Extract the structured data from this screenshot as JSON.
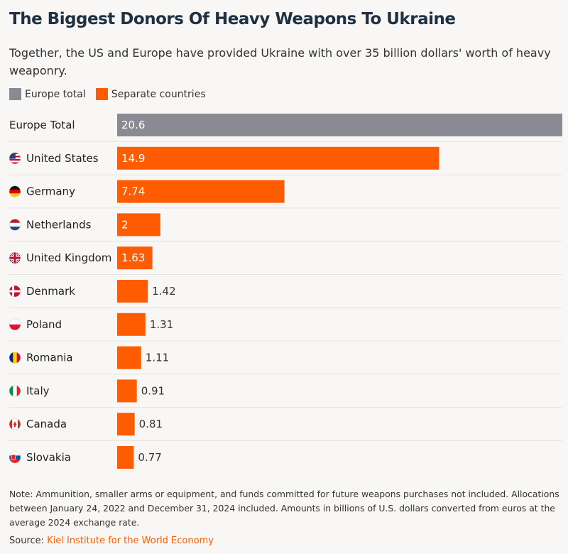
{
  "title": "The Biggest Donors Of Heavy Weapons To Ukraine",
  "subtitle": "Together, the US and Europe have provided Ukraine with over 35 billion dollars' worth of heavy weaponry.",
  "legend": {
    "europe_label": "Europe total",
    "countries_label": "Separate countries"
  },
  "colors": {
    "europe": "#8a8a94",
    "countries": "#ff5b00",
    "gridline": "#e6e4e0"
  },
  "chart_data": {
    "type": "bar",
    "orientation": "horizontal",
    "categories": [
      "Europe Total",
      "United States",
      "Germany",
      "Netherlands",
      "United Kingdom",
      "Denmark",
      "Poland",
      "Romania",
      "Italy",
      "Canada",
      "Slovakia"
    ],
    "values": [
      20.6,
      14.9,
      7.74,
      2,
      1.63,
      1.42,
      1.31,
      1.11,
      0.91,
      0.81,
      0.77
    ],
    "value_labels": [
      "20.6",
      "14.9",
      "7.74",
      "2",
      "1.63",
      "1.42",
      "1.31",
      "1.11",
      "0.91",
      "0.81",
      "0.77"
    ],
    "series_type": [
      "europe",
      "countries",
      "countries",
      "countries",
      "countries",
      "countries",
      "countries",
      "countries",
      "countries",
      "countries",
      "countries"
    ],
    "flags": [
      "",
      "us-flag",
      "de-flag",
      "nl-flag",
      "gb-flag",
      "dk-flag",
      "pl-flag",
      "ro-flag",
      "it-flag",
      "ca-flag",
      "sk-flag"
    ],
    "xlim": [
      0,
      20.6
    ],
    "grid": false,
    "legend_position": "top-left"
  },
  "note": "Note: Ammunition, smaller arms or equipment, and funds committed for future weapons purchases not included. Allocations between January 24, 2022 and December 31, 2024 included. Amounts in billions of U.S. dollars converted from euros at the average 2024 exchange rate.",
  "source": {
    "label": "Source:",
    "name": "Kiel Institute for the World Economy"
  }
}
